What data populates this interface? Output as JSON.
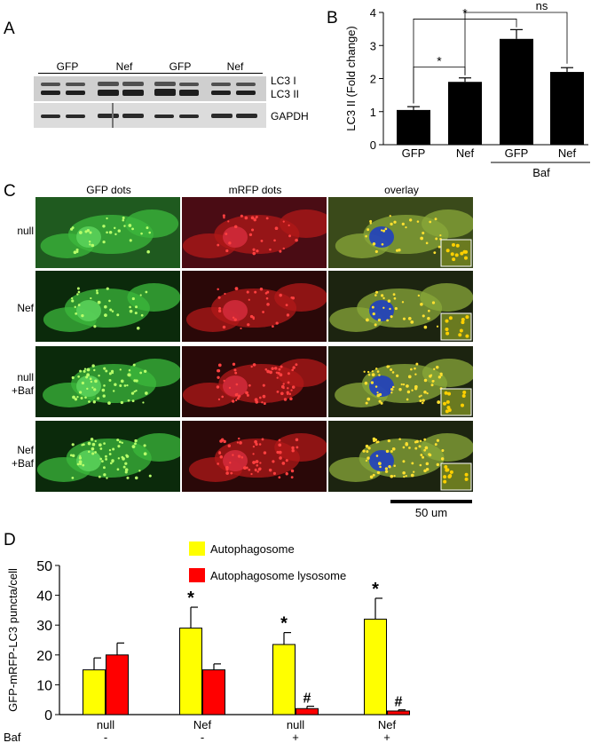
{
  "panels": {
    "A": "A",
    "B": "B",
    "C": "C",
    "D": "D"
  },
  "panelA": {
    "lanes": [
      "GFP",
      "Nef",
      "GFP",
      "Nef"
    ],
    "bands": {
      "lc3i": "LC3 I",
      "lc3ii": "LC3 II",
      "gapdh": "GAPDH"
    }
  },
  "panelB": {
    "chart_data": {
      "type": "bar",
      "categories": [
        "GFP",
        "Nef",
        "GFP",
        "Nef"
      ],
      "values": [
        1.05,
        1.9,
        3.2,
        2.2
      ],
      "errors": [
        0.1,
        0.12,
        0.28,
        0.13
      ],
      "ylabel": "LC3 II (Fold change)",
      "yticks": [
        0,
        1,
        2,
        3,
        4
      ],
      "ylim": [
        0,
        4
      ],
      "group_label": "Baf",
      "annotations": [
        "*",
        "*",
        "ns"
      ]
    }
  },
  "panelC": {
    "columns": [
      "GFP dots",
      "mRFP dots",
      "overlay"
    ],
    "rows": [
      {
        "line1": "null",
        "line2": ""
      },
      {
        "line1": "Nef",
        "line2": ""
      },
      {
        "line1": "null",
        "line2": "+Baf"
      },
      {
        "line1": "Nef",
        "line2": "+Baf"
      }
    ],
    "scalebar": "50 um"
  },
  "panelD": {
    "chart_data": {
      "type": "bar",
      "ylabel": "GFP-mRFP-LC3 puncta/cell",
      "yticks": [
        0,
        10,
        20,
        30,
        40,
        50
      ],
      "ylim": [
        0,
        50
      ],
      "categories": [
        "null",
        "Nef",
        "null",
        "Nef"
      ],
      "baf_label": "Baf",
      "baf": [
        "-",
        "-",
        "+",
        "+"
      ],
      "series": [
        {
          "name": "Autophagosome",
          "color": "#ffff00",
          "values": [
            15,
            29,
            23.5,
            32
          ],
          "errors": [
            4,
            7,
            4,
            7
          ],
          "marks": [
            "",
            "*",
            "*",
            "*"
          ]
        },
        {
          "name": "Autophagosome lysosome",
          "color": "#ff0000",
          "values": [
            20,
            15,
            2,
            1.2
          ],
          "errors": [
            4,
            2,
            0.8,
            0.4
          ],
          "marks": [
            "",
            "",
            "#",
            "#"
          ]
        }
      ]
    }
  }
}
